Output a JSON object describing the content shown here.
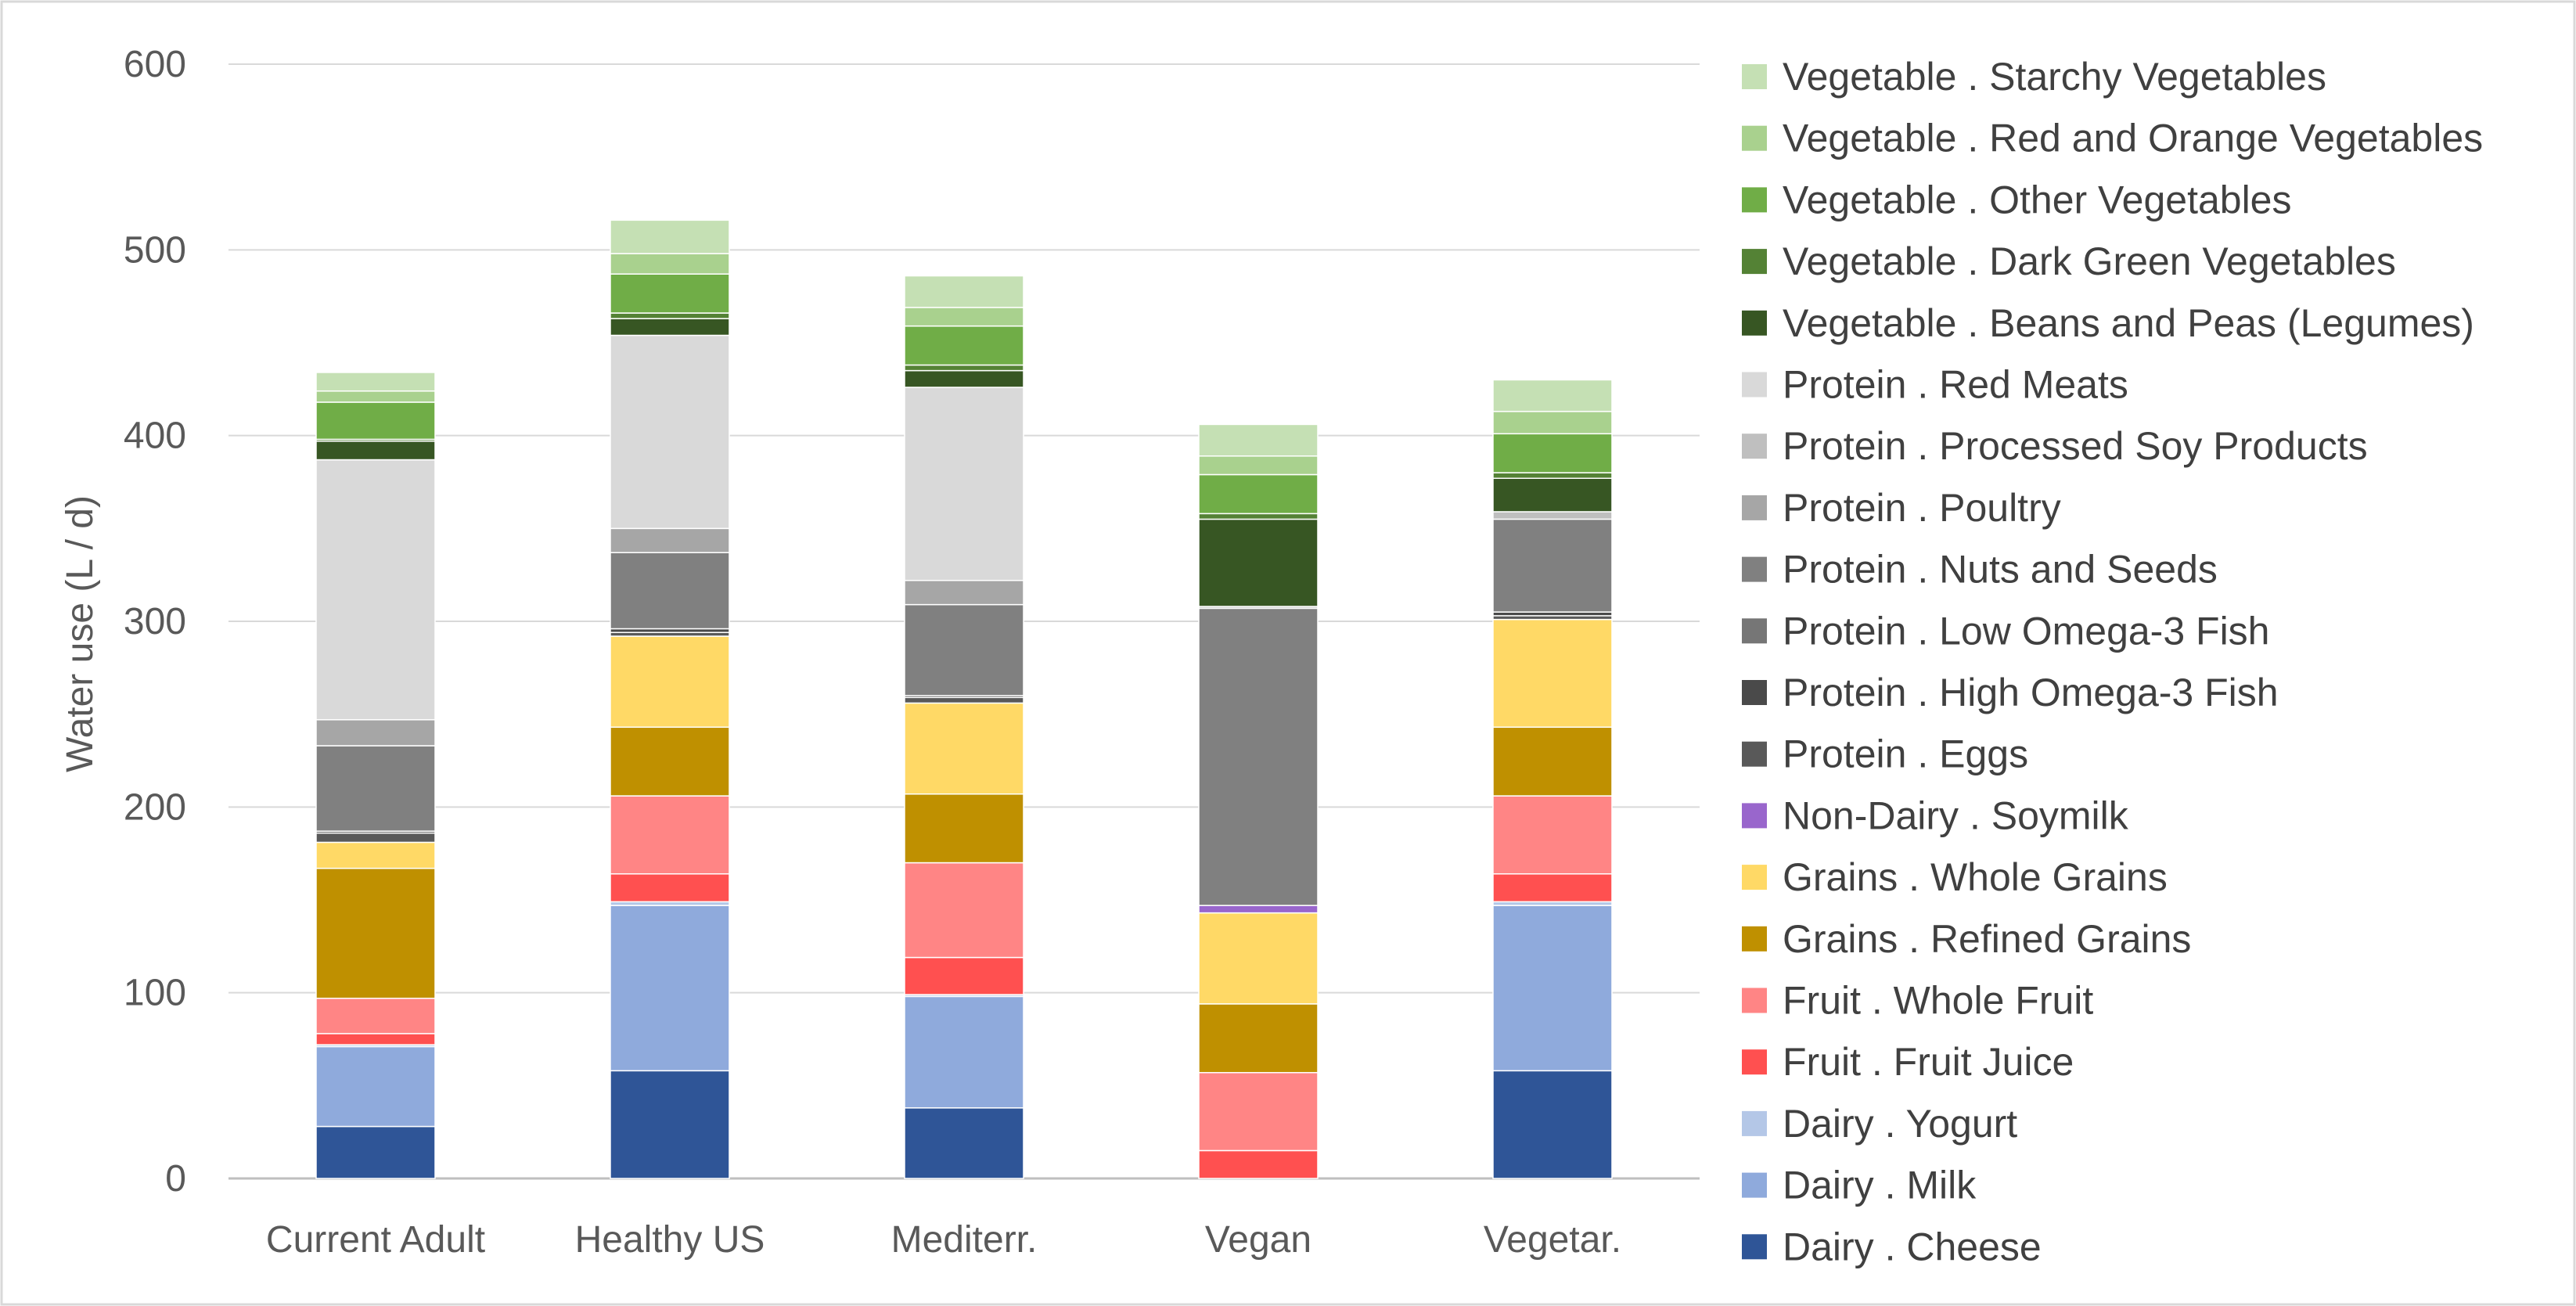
{
  "chart_data": {
    "type": "bar",
    "stacked": true,
    "title": "",
    "xlabel": "",
    "ylabel": "Water use (L / d)",
    "ylim": [
      0,
      600
    ],
    "yticks": [
      0,
      100,
      200,
      300,
      400,
      500,
      600
    ],
    "grid": "horizontal",
    "legend_position": "right",
    "categories": [
      "Current Adult",
      "Healthy US",
      "Mediterr.",
      "Vegan",
      "Vegetar."
    ],
    "series": [
      {
        "name": "Dairy . Cheese",
        "color": "#2F5597",
        "values": [
          28,
          58,
          38,
          0,
          58
        ]
      },
      {
        "name": "Dairy . Milk",
        "color": "#8FAADC",
        "values": [
          43,
          89,
          60,
          0,
          89
        ]
      },
      {
        "name": "Dairy . Yogurt",
        "color": "#B4C7E7",
        "values": [
          1,
          2,
          1,
          0,
          2
        ]
      },
      {
        "name": "Fruit . Fruit Juice",
        "color": "#FF5050",
        "values": [
          6,
          15,
          20,
          15,
          15
        ]
      },
      {
        "name": "Fruit . Whole Fruit",
        "color": "#FF8585",
        "values": [
          19,
          42,
          51,
          42,
          42
        ]
      },
      {
        "name": "Grains . Refined Grains",
        "color": "#BF9000",
        "values": [
          70,
          37,
          37,
          37,
          37
        ]
      },
      {
        "name": "Grains . Whole Grains",
        "color": "#FFD966",
        "values": [
          14,
          49,
          49,
          49,
          58
        ]
      },
      {
        "name": "Non-Dairy . Soymilk",
        "color": "#9966CC",
        "values": [
          0,
          0,
          0,
          4,
          0
        ]
      },
      {
        "name": "Protein . Eggs",
        "color": "#595959",
        "values": [
          5,
          2,
          3,
          0,
          2
        ]
      },
      {
        "name": "Protein . High Omega-3 Fish",
        "color": "#4A4A4A",
        "values": [
          1,
          2,
          1,
          0,
          2
        ]
      },
      {
        "name": "Protein . Low Omega-3 Fish",
        "color": "#767676",
        "values": [
          0,
          0,
          0,
          0,
          0
        ]
      },
      {
        "name": "Protein . Nuts and Seeds",
        "color": "#808080",
        "values": [
          46,
          41,
          49,
          160,
          50
        ]
      },
      {
        "name": "Protein . Poultry",
        "color": "#A6A6A6",
        "values": [
          14,
          13,
          13,
          0,
          0
        ]
      },
      {
        "name": "Protein . Processed Soy Products",
        "color": "#BFBFBF",
        "values": [
          0,
          0,
          0,
          1,
          4
        ]
      },
      {
        "name": "Protein . Red Meats",
        "color": "#D9D9D9",
        "values": [
          140,
          104,
          104,
          0,
          0
        ]
      },
      {
        "name": "Vegetable . Beans and Peas (Legumes)",
        "color": "#375623",
        "values": [
          10,
          9,
          9,
          47,
          18
        ]
      },
      {
        "name": "Vegetable . Dark Green Vegetables",
        "color": "#548235",
        "values": [
          1,
          3,
          3,
          3,
          3
        ]
      },
      {
        "name": "Vegetable . Other Vegetables",
        "color": "#70AD47",
        "values": [
          20,
          21,
          21,
          21,
          21
        ]
      },
      {
        "name": "Vegetable . Red and Orange Vegetables",
        "color": "#A9D18E",
        "values": [
          6,
          11,
          10,
          10,
          12
        ]
      },
      {
        "name": "Vegetable . Starchy Vegetables",
        "color": "#C5E0B4",
        "values": [
          10,
          18,
          17,
          17,
          17
        ]
      }
    ]
  }
}
